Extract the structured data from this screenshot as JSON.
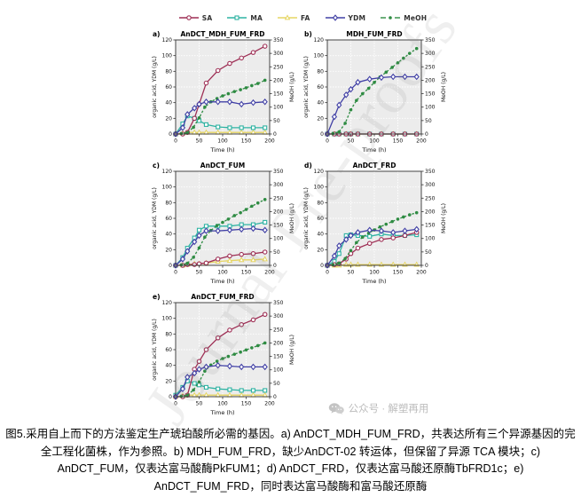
{
  "legend": {
    "items": [
      {
        "label": "SA",
        "color": "#9e2f55",
        "marker": "circle",
        "line": "solid"
      },
      {
        "label": "MA",
        "color": "#2fb3a3",
        "marker": "square",
        "line": "solid"
      },
      {
        "label": "FA",
        "color": "#e6d563",
        "marker": "triangle",
        "line": "solid"
      },
      {
        "label": "YDM",
        "color": "#4140a5",
        "marker": "diamond",
        "line": "solid"
      },
      {
        "label": "MeOH",
        "color": "#2e8b42",
        "marker": "filled-circle",
        "line": "dashed"
      }
    ]
  },
  "chart_data": [
    {
      "type": "line",
      "panel": "a)",
      "title": "AnDCT_MDH_FUM_FRD",
      "xlabel": "Time (h)",
      "ylabel_left": "organic acid, YDM (g/L)",
      "ylabel_right": "MeOH (g/L)",
      "xlim": [
        0,
        200
      ],
      "ylim_left": [
        0,
        120
      ],
      "ylim_right": [
        0,
        350
      ],
      "x_ticks": [
        0,
        50,
        100,
        150,
        200
      ],
      "left_ticks": [
        0,
        20,
        40,
        60,
        80,
        100,
        120
      ],
      "right_ticks": [
        0,
        50,
        100,
        150,
        200,
        250,
        300,
        350
      ],
      "x": [
        0,
        15,
        25,
        40,
        50,
        65,
        90,
        115,
        140,
        165,
        190
      ],
      "series": [
        {
          "name": "FA",
          "axis": "left",
          "values": [
            0,
            1,
            2,
            2,
            2,
            2,
            2,
            2,
            2,
            2,
            2
          ]
        },
        {
          "name": "MA",
          "axis": "left",
          "values": [
            0,
            13,
            23,
            20,
            17,
            12,
            9,
            8,
            8,
            8,
            8
          ]
        },
        {
          "name": "SA",
          "axis": "left",
          "values": [
            0,
            0,
            2,
            20,
            38,
            65,
            81,
            90,
            97,
            104,
            112
          ]
        },
        {
          "name": "MeOH",
          "axis": "right",
          "x": [
            0,
            12,
            25,
            38,
            50,
            62,
            75,
            88,
            100,
            112,
            125,
            138,
            150,
            162,
            175,
            190
          ],
          "values": [
            0,
            2,
            5,
            25,
            60,
            100,
            120,
            132,
            142,
            150,
            158,
            165,
            172,
            180,
            188,
            200
          ]
        },
        {
          "name": "YDM",
          "axis": "left",
          "values": [
            0,
            8,
            25,
            33,
            38,
            41,
            41,
            41,
            38,
            40,
            41
          ]
        }
      ]
    },
    {
      "type": "line",
      "panel": "b)",
      "title": "MDH_FUM_FRD",
      "xlabel": "Time (h)",
      "ylabel_left": "organic acid, YDM (g/L)",
      "ylabel_right": "MeOH (g/L)",
      "xlim": [
        0,
        200
      ],
      "ylim_left": [
        0,
        120
      ],
      "ylim_right": [
        0,
        350
      ],
      "x_ticks": [
        0,
        50,
        100,
        150,
        200
      ],
      "left_ticks": [
        0,
        20,
        40,
        60,
        80,
        100,
        120
      ],
      "right_ticks": [
        0,
        50,
        100,
        150,
        200,
        250,
        300,
        350
      ],
      "x": [
        0,
        15,
        25,
        40,
        50,
        65,
        90,
        115,
        140,
        165,
        190
      ],
      "series": [
        {
          "name": "FA",
          "axis": "left",
          "values": [
            0,
            0,
            0,
            0,
            0,
            0,
            0,
            0,
            0,
            0,
            0
          ]
        },
        {
          "name": "MA",
          "axis": "left",
          "values": [
            0,
            0,
            0,
            0,
            0,
            0,
            0,
            0,
            0,
            0,
            0
          ]
        },
        {
          "name": "SA",
          "axis": "left",
          "values": [
            0,
            0,
            0,
            0,
            0,
            0,
            0,
            0,
            0,
            0,
            0
          ]
        },
        {
          "name": "MeOH",
          "axis": "right",
          "x": [
            0,
            12,
            25,
            38,
            50,
            62,
            75,
            88,
            100,
            112,
            125,
            138,
            150,
            162,
            175,
            190
          ],
          "values": [
            0,
            2,
            8,
            40,
            90,
            125,
            150,
            170,
            192,
            212,
            230,
            248,
            265,
            282,
            300,
            318
          ]
        },
        {
          "name": "YDM",
          "axis": "left",
          "values": [
            0,
            22,
            37,
            50,
            57,
            66,
            70,
            72,
            73,
            73,
            73
          ]
        }
      ]
    },
    {
      "type": "line",
      "panel": "c)",
      "title": "AnDCT_FUM",
      "xlabel": "Time (h)",
      "ylabel_left": "organic acid, YDM (g/L)",
      "ylabel_right": "MeOH (g/L)",
      "xlim": [
        0,
        200
      ],
      "ylim_left": [
        0,
        120
      ],
      "ylim_right": [
        0,
        350
      ],
      "x_ticks": [
        0,
        50,
        100,
        150,
        200
      ],
      "left_ticks": [
        0,
        20,
        40,
        60,
        80,
        100,
        120
      ],
      "right_ticks": [
        0,
        50,
        100,
        150,
        200,
        250,
        300,
        350
      ],
      "x": [
        0,
        15,
        25,
        40,
        50,
        65,
        90,
        115,
        140,
        165,
        190
      ],
      "series": [
        {
          "name": "FA",
          "axis": "left",
          "values": [
            0,
            0,
            1,
            2,
            2,
            3,
            5,
            6,
            7,
            7,
            8
          ]
        },
        {
          "name": "MA",
          "axis": "left",
          "values": [
            0,
            10,
            22,
            35,
            45,
            50,
            50,
            50,
            52,
            52,
            55
          ]
        },
        {
          "name": "SA",
          "axis": "left",
          "values": [
            0,
            0,
            1,
            1,
            2,
            3,
            8,
            12,
            14,
            15,
            17
          ]
        },
        {
          "name": "MeOH",
          "axis": "right",
          "x": [
            0,
            12,
            25,
            38,
            50,
            62,
            75,
            88,
            100,
            112,
            125,
            138,
            150,
            162,
            175,
            190
          ],
          "values": [
            0,
            2,
            8,
            30,
            65,
            105,
            130,
            148,
            160,
            172,
            185,
            196,
            208,
            220,
            232,
            245
          ]
        },
        {
          "name": "YDM",
          "axis": "left",
          "values": [
            0,
            8,
            18,
            30,
            38,
            44,
            44,
            45,
            46,
            47,
            45
          ]
        }
      ]
    },
    {
      "type": "line",
      "panel": "d)",
      "title": "AnDCT_FRD",
      "xlabel": "Time (h)",
      "ylabel_left": "organic acid, YDM (g/L)",
      "ylabel_right": "MeOH (g/L)",
      "xlim": [
        0,
        200
      ],
      "ylim_left": [
        0,
        120
      ],
      "ylim_right": [
        0,
        350
      ],
      "x_ticks": [
        0,
        50,
        100,
        150,
        200
      ],
      "left_ticks": [
        0,
        20,
        40,
        60,
        80,
        100,
        120
      ],
      "right_ticks": [
        0,
        50,
        100,
        150,
        200,
        250,
        300,
        350
      ],
      "x": [
        0,
        15,
        25,
        40,
        50,
        65,
        90,
        115,
        140,
        165,
        190
      ],
      "series": [
        {
          "name": "FA",
          "axis": "left",
          "values": [
            0,
            0,
            0,
            1,
            1,
            1,
            1,
            1,
            1,
            1,
            1
          ]
        },
        {
          "name": "MA",
          "axis": "left",
          "values": [
            0,
            5,
            15,
            38,
            39,
            38,
            37,
            40,
            38,
            38,
            39
          ]
        },
        {
          "name": "SA",
          "axis": "left",
          "values": [
            0,
            1,
            2,
            8,
            15,
            22,
            28,
            33,
            35,
            38,
            42
          ]
        },
        {
          "name": "MeOH",
          "axis": "right",
          "x": [
            0,
            12,
            25,
            38,
            50,
            62,
            75,
            88,
            100,
            112,
            125,
            138,
            150,
            162,
            175,
            190
          ],
          "values": [
            0,
            2,
            8,
            25,
            55,
            85,
            105,
            120,
            132,
            143,
            153,
            163,
            172,
            180,
            188,
            196
          ]
        },
        {
          "name": "YDM",
          "axis": "left",
          "values": [
            0,
            12,
            25,
            33,
            38,
            42,
            45,
            44,
            42,
            44,
            46
          ]
        }
      ]
    },
    {
      "type": "line",
      "panel": "e)",
      "title": "AnDCT_FUM_FRD",
      "xlabel": "Time (h)",
      "ylabel_left": "organic acid, YDM (g/L)",
      "ylabel_right": "MeOH (g/L)",
      "xlim": [
        0,
        200
      ],
      "ylim_left": [
        0,
        120
      ],
      "ylim_right": [
        0,
        350
      ],
      "x_ticks": [
        0,
        50,
        100,
        150,
        200
      ],
      "left_ticks": [
        0,
        20,
        40,
        60,
        80,
        100,
        120
      ],
      "right_ticks": [
        0,
        50,
        100,
        150,
        200,
        250,
        300,
        350
      ],
      "x": [
        0,
        15,
        25,
        40,
        50,
        65,
        90,
        115,
        140,
        165,
        190
      ],
      "series": [
        {
          "name": "FA",
          "axis": "left",
          "values": [
            0,
            1,
            2,
            2,
            2,
            2,
            2,
            2,
            2,
            2,
            2
          ]
        },
        {
          "name": "MA",
          "axis": "left",
          "values": [
            2,
            12,
            20,
            17,
            15,
            12,
            10,
            9,
            8,
            8,
            8
          ]
        },
        {
          "name": "SA",
          "axis": "left",
          "values": [
            0,
            0,
            2,
            35,
            45,
            60,
            75,
            85,
            92,
            98,
            105
          ]
        },
        {
          "name": "MeOH",
          "axis": "right",
          "x": [
            0,
            12,
            25,
            38,
            50,
            62,
            75,
            88,
            100,
            112,
            125,
            138,
            150,
            162,
            175,
            190
          ],
          "values": [
            0,
            2,
            5,
            25,
            55,
            95,
            118,
            132,
            142,
            150,
            158,
            166,
            174,
            182,
            190,
            200
          ]
        },
        {
          "name": "YDM",
          "axis": "left",
          "values": [
            0,
            10,
            25,
            30,
            35,
            38,
            40,
            39,
            38,
            38,
            38
          ]
        }
      ]
    }
  ],
  "watermarks": {
    "journal": "Journal Pre-proofs",
    "wechat": "公众号 · 解塑再用"
  },
  "caption": {
    "lines": [
      "图5.采用自上而下的方法鉴定生产琥珀酸所必需的基因。a) AnDCT_MDH_FUM_FRD，共表达所有三个异源基因的完",
      "全工程化菌株，作为参照。b) MDH_FUM_FRD，缺少AnDCT-02 转运体，但保留了异源 TCA 模块；c)",
      "AnDCT_FUM，仅表达富马酸酶PkFUM1；d) AnDCT_FRD，仅表达富马酸还原酶TbFRD1c；e)",
      "AnDCT_FUM_FRD，同时表达富马酸酶和富马酸还原酶"
    ]
  },
  "colors": {
    "plot_background": "#ececec",
    "grid_line": "#ffffff",
    "axis_frame": "#333333",
    "caption_text": "#000000",
    "watermark_gray": "#bcbcbc"
  }
}
